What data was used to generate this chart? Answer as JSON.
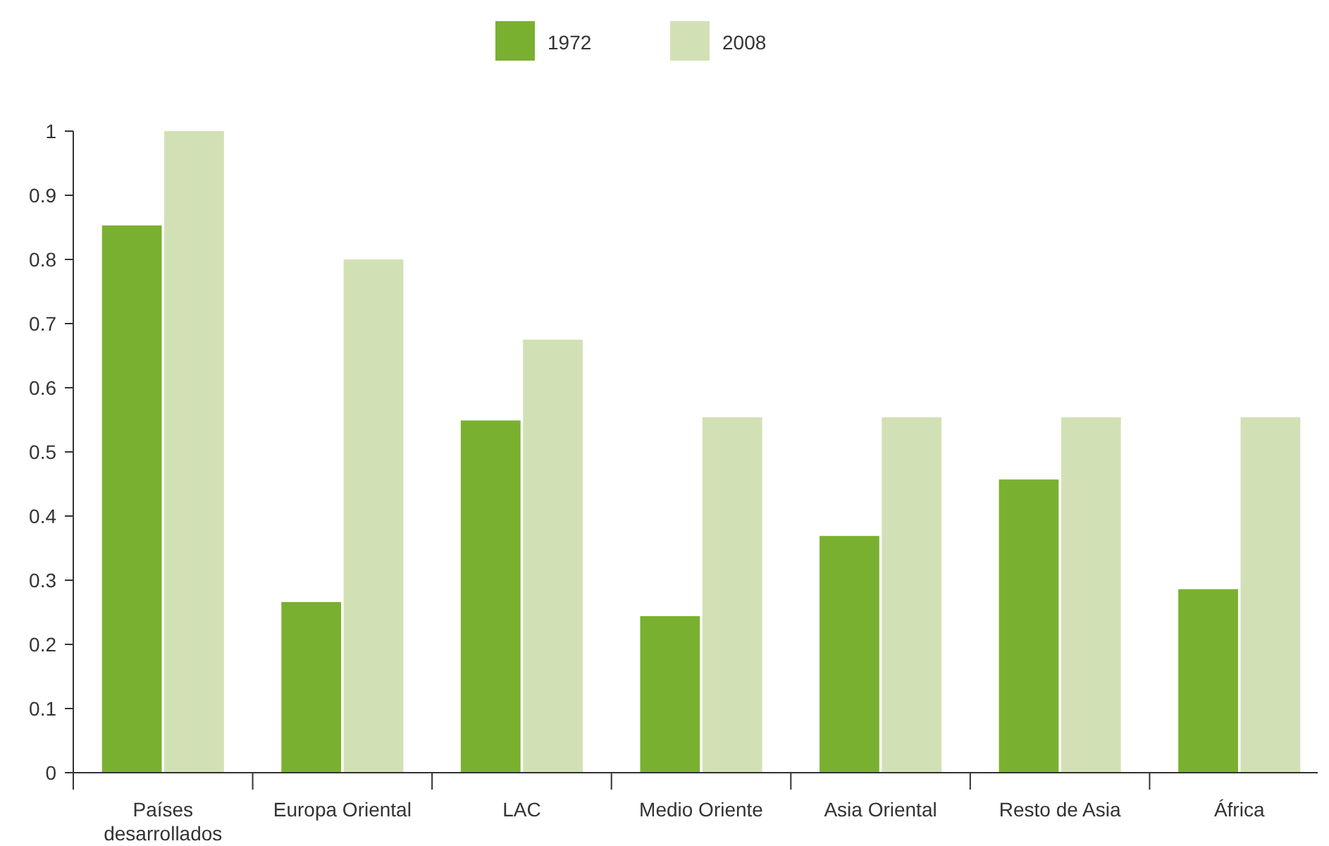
{
  "chart_data": {
    "type": "bar",
    "categories": [
      "Países desarrollados",
      "Europa Oriental",
      "LAC",
      "Medio Oriente",
      "Asia Oriental",
      "Resto de Asia",
      "África"
    ],
    "series": [
      {
        "name": "1972",
        "color": "#7ab030",
        "values": [
          0.853,
          0.266,
          0.549,
          0.244,
          0.369,
          0.457,
          0.286
        ]
      },
      {
        "name": "2008",
        "color": "#d2e1b5",
        "values": [
          1.0,
          0.8,
          0.675,
          0.554,
          0.554,
          0.554,
          0.554
        ]
      }
    ],
    "ylim": [
      0,
      1
    ],
    "yticks": [
      0,
      0.1,
      0.2,
      0.3,
      0.4,
      0.5,
      0.6,
      0.7,
      0.8,
      0.9,
      1
    ],
    "grid": false,
    "legend": "top"
  }
}
